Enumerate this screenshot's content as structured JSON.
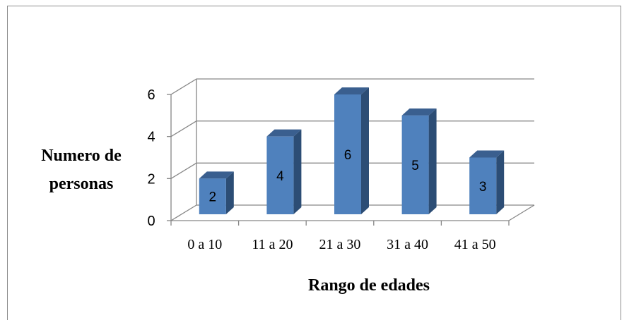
{
  "chart_data": {
    "type": "bar",
    "title": "",
    "categories": [
      "0 a 10",
      "11 a 20",
      "21 a 30",
      "31 a 40",
      "41 a 50"
    ],
    "values": [
      2,
      4,
      6,
      5,
      3
    ],
    "data_labels": [
      "2",
      "4",
      "6",
      "5",
      "3"
    ],
    "yticks": [
      "0",
      "2",
      "4",
      "6"
    ],
    "ylim": [
      0,
      6
    ],
    "ylabel_lines": [
      "Numero de",
      "personas"
    ],
    "xlabel": "Rango de edades",
    "grid": true,
    "legend": "none",
    "style": "3d-column",
    "colors": {
      "bar_front": "#4f81bd",
      "bar_side": "#2c4d75",
      "bar_top": "#3a5f8f",
      "grid": "#868686"
    }
  }
}
